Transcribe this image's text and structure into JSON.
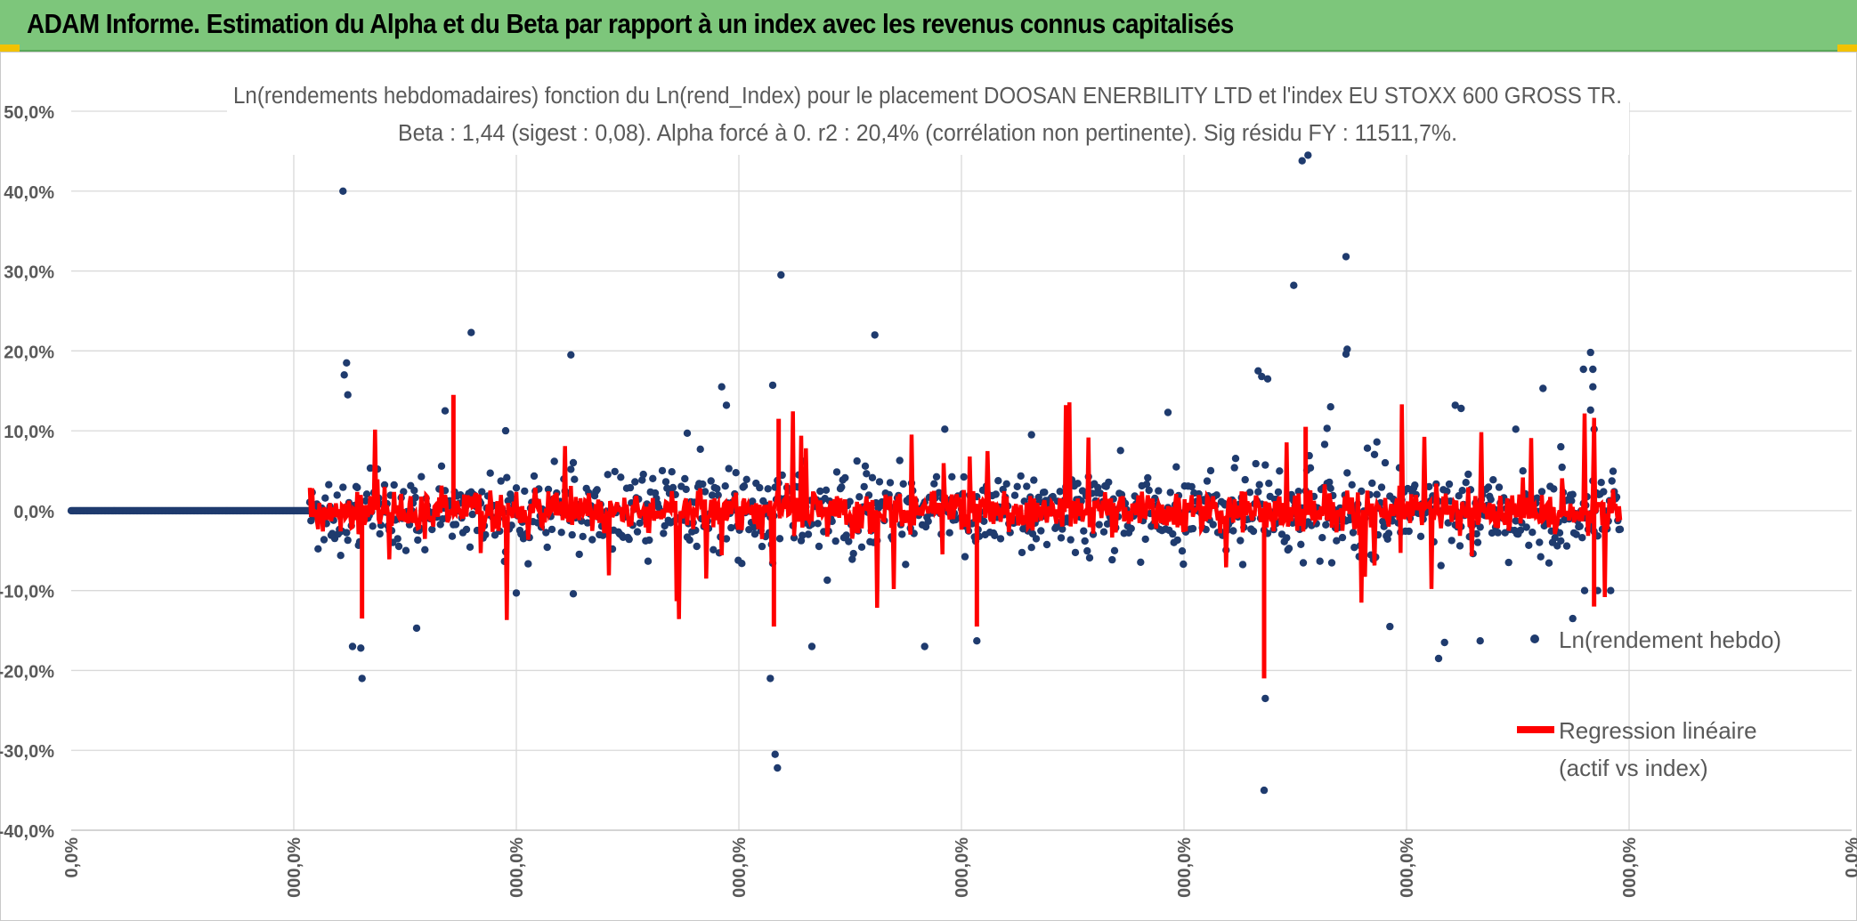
{
  "banner": {
    "title": "ADAM Informe. Estimation du Alpha et du Beta par rapport à un index avec les revenus connus capitalisés"
  },
  "colors": {
    "banner_bg": "#7dc67b",
    "corner_accent": "#f2c200",
    "points": "#1f3b6e",
    "regression": "#ff0000",
    "grid": "#d9d9d9",
    "text": "#595959"
  },
  "chart_data": {
    "type": "scatter",
    "title_line1": "Ln(rendements hebdomadaires) fonction du Ln(rend_Index) pour le placement DOOSAN ENERBILITY LTD et l'index EU STOXX 600 GROSS TR.",
    "title_line2": "Beta : 1,44 (sigest : 0,08).  Alpha forcé à 0. r2 : 20,4% (corrélation non pertinente). Sig résidu FY : 11511,7%.",
    "y_ticks": [
      "50,0%",
      "40,0%",
      "30,0%",
      "20,0%",
      "10,0%",
      "0,0%",
      "-10,0%",
      "-20,0%",
      "-30,0%",
      "-40,0%"
    ],
    "y_tick_values": [
      50,
      40,
      30,
      20,
      10,
      0,
      -10,
      -20,
      -30,
      -40
    ],
    "ylim": [
      -40,
      50
    ],
    "x_ticks": [
      "0,0%",
      "000,0%",
      "000,0%",
      "000,0%",
      "000,0%",
      "000,0%",
      "000,0%",
      "000,0%",
      "0,0%"
    ],
    "x_count": 1500,
    "xlim": [
      0,
      1500
    ],
    "beta": 1.44,
    "alpha": 0,
    "legend": {
      "series1": "Ln(rendement hebdo)",
      "series2_line1": "Regression linéaire",
      "series2_line2": "(actif vs index)"
    },
    "flat_segment": {
      "x_start": 0,
      "x_end": 200,
      "y": 0
    },
    "outliers": [
      [
        229,
        40.0
      ],
      [
        230,
        17.0
      ],
      [
        232,
        18.5
      ],
      [
        233,
        14.5
      ],
      [
        237,
        -17.0
      ],
      [
        244,
        -17.2
      ],
      [
        245,
        -21.0
      ],
      [
        315,
        12.5
      ],
      [
        337,
        22.3
      ],
      [
        291,
        -14.7
      ],
      [
        375,
        -10.3
      ],
      [
        423,
        -10.4
      ],
      [
        366,
        10.0
      ],
      [
        421,
        19.5
      ],
      [
        519,
        9.7
      ],
      [
        548,
        15.5
      ],
      [
        552,
        13.2
      ],
      [
        591,
        15.7
      ],
      [
        589,
        -21.0
      ],
      [
        593,
        -30.5
      ],
      [
        595,
        -32.2
      ],
      [
        598,
        29.5
      ],
      [
        624,
        -17.0
      ],
      [
        677,
        22.0
      ],
      [
        719,
        -17.0
      ],
      [
        736,
        10.2
      ],
      [
        763,
        -16.3
      ],
      [
        809,
        9.5
      ],
      [
        924,
        12.3
      ],
      [
        1000,
        17.5
      ],
      [
        1003,
        16.8
      ],
      [
        1058,
        10.3
      ],
      [
        1100,
        8.6
      ],
      [
        1111,
        -14.5
      ],
      [
        1157,
        -16.5
      ],
      [
        1005,
        -35.0
      ],
      [
        1006,
        -23.5
      ],
      [
        1008,
        16.5
      ],
      [
        1037,
        43.8
      ],
      [
        1042,
        44.5
      ],
      [
        1030,
        28.2
      ],
      [
        1061,
        13.0
      ],
      [
        1074,
        31.8
      ],
      [
        1074,
        19.6
      ],
      [
        1075,
        20.2
      ],
      [
        1152,
        -18.5
      ],
      [
        1166,
        13.2
      ],
      [
        1171,
        12.8
      ],
      [
        1187,
        -16.3
      ],
      [
        1217,
        10.2
      ],
      [
        1240,
        15.3
      ],
      [
        1274,
        17.7
      ],
      [
        1275,
        -10.0
      ],
      [
        1280,
        19.8
      ],
      [
        1282,
        15.5
      ],
      [
        1280,
        12.6
      ],
      [
        1283,
        10.2
      ],
      [
        1286,
        -10.0
      ],
      [
        1297,
        -10.0
      ],
      [
        1265,
        -13.5
      ],
      [
        1282,
        17.7
      ],
      [
        1255,
        8.0
      ]
    ]
  }
}
